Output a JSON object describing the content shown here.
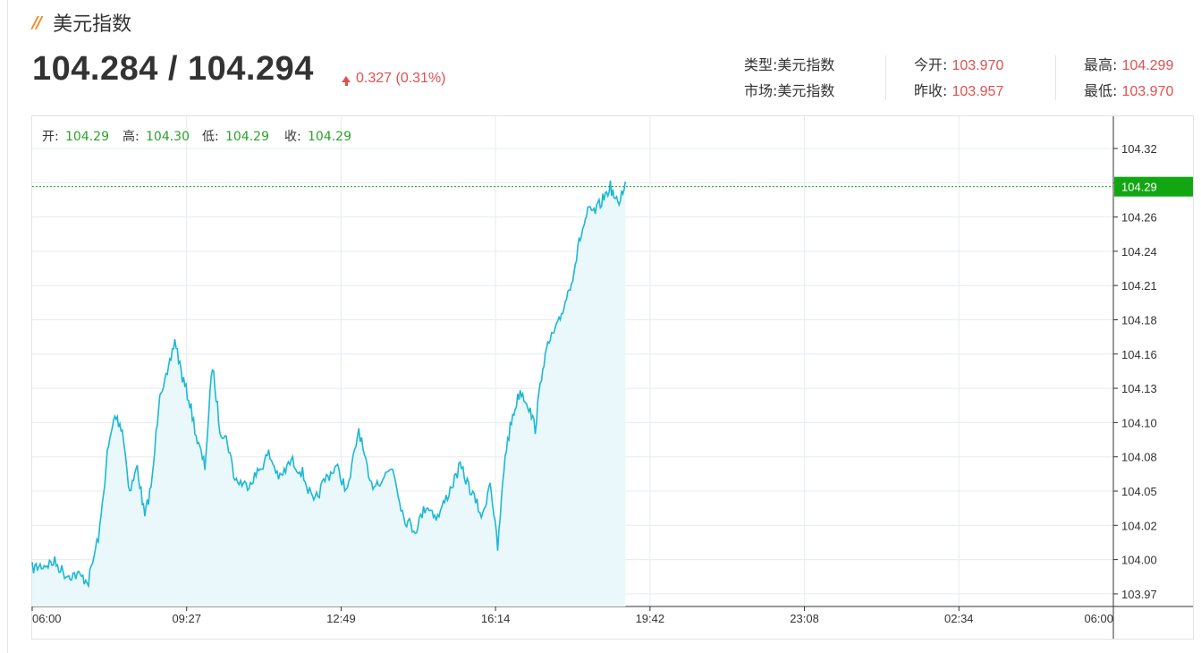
{
  "header": {
    "title": "美元指数"
  },
  "quote": {
    "price": "104.284 / 104.294",
    "change": "0.327 (0.31%)",
    "direction": "up"
  },
  "info": {
    "type_label": "类型:",
    "type_value": "美元指数",
    "market_label": "市场:",
    "market_value": "美元指数",
    "open_label": "今开:",
    "open_value": "103.970",
    "prev_close_label": "昨收:",
    "prev_close_value": "103.957",
    "high_label": "最高:",
    "high_value": "104.299",
    "low_label": "最低:",
    "low_value": "103.970"
  },
  "ohlc": {
    "open_label": "开:",
    "open_value": "104.29",
    "high_label": "高:",
    "high_value": "104.30",
    "low_label": "低:",
    "low_value": "104.29",
    "close_label": "收:",
    "close_value": "104.29"
  },
  "colors": {
    "line": "#1cb8d4",
    "area": "#eaf8fb",
    "up": "#e24f4f",
    "ohlc_value": "#2da02d",
    "last_price_badge": "#13a613",
    "grid": "#e6ecf0"
  },
  "chart_data": {
    "type": "area",
    "y_ticks": [
      "104.32",
      "104.29",
      "104.26",
      "104.24",
      "104.21",
      "104.18",
      "104.16",
      "104.13",
      "104.10",
      "104.08",
      "104.05",
      "104.02",
      "104.00",
      "103.97"
    ],
    "x_ticks": [
      "06:00",
      "09:27",
      "12:49",
      "16:14",
      "19:42",
      "23:08",
      "02:34",
      "06:00"
    ],
    "last_price": "104.29",
    "ylim": [
      103.96,
      104.33
    ],
    "series": [
      {
        "x": [
          "06:00",
          "06:30",
          "06:45",
          "07:00",
          "07:15",
          "07:30",
          "07:40",
          "07:50",
          "08:00",
          "08:10",
          "08:20",
          "08:30",
          "08:40",
          "08:50",
          "09:00",
          "09:10",
          "09:20",
          "09:30",
          "09:40",
          "09:50",
          "10:00",
          "10:10",
          "10:20",
          "10:30",
          "10:45",
          "11:00",
          "11:15",
          "11:30",
          "11:45",
          "12:00",
          "12:15",
          "12:30",
          "12:45",
          "13:00",
          "13:15",
          "13:30",
          "13:45",
          "14:00",
          "14:15",
          "14:30",
          "14:45",
          "15:00",
          "15:15",
          "15:30",
          "15:45",
          "16:00",
          "16:10",
          "16:20",
          "16:30",
          "16:40",
          "16:50",
          "17:00",
          "17:10",
          "17:20",
          "17:30",
          "17:40",
          "17:50",
          "18:00",
          "18:10",
          "18:20",
          "18:30",
          "18:40",
          "18:50",
          "19:00",
          "19:10"
        ],
        "y": [
          103.99,
          103.995,
          103.985,
          103.985,
          103.98,
          104.02,
          104.08,
          104.11,
          104.1,
          104.05,
          104.07,
          104.03,
          104.06,
          104.13,
          104.14,
          104.17,
          104.14,
          104.12,
          104.09,
          104.07,
          104.15,
          104.1,
          104.09,
          104.06,
          104.055,
          104.065,
          104.08,
          104.06,
          104.075,
          104.065,
          104.04,
          104.06,
          104.07,
          104.05,
          104.1,
          104.055,
          104.06,
          104.07,
          104.03,
          104.02,
          104.04,
          104.03,
          104.05,
          104.07,
          104.05,
          104.03,
          104.06,
          104.005,
          104.08,
          104.11,
          104.13,
          104.12,
          104.1,
          104.15,
          104.17,
          104.18,
          104.2,
          104.22,
          104.25,
          104.27,
          104.27,
          104.28,
          104.29,
          104.275,
          104.294
        ]
      }
    ]
  }
}
